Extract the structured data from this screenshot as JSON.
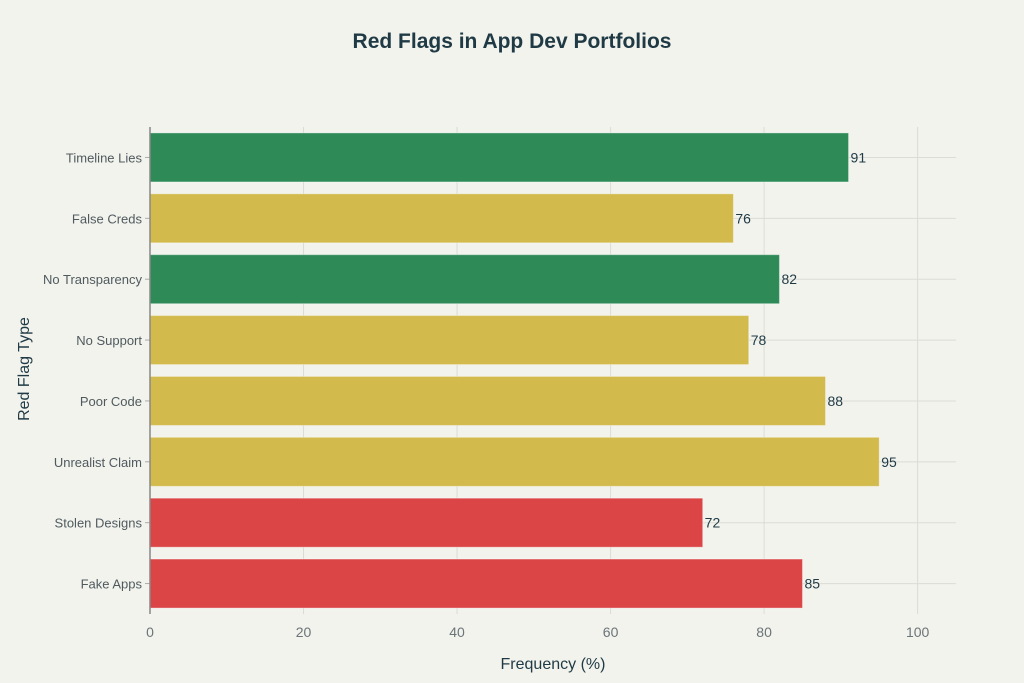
{
  "chart_data": {
    "type": "bar",
    "orientation": "horizontal",
    "title": "Red Flags in App Dev Portfolios",
    "xlabel": "Frequency (%)",
    "ylabel": "Red Flag Type",
    "xlim": [
      0,
      105
    ],
    "xticks": [
      0,
      20,
      40,
      60,
      80,
      100
    ],
    "grid": true,
    "categories": [
      "Timeline Lies",
      "False Creds",
      "No Transparency",
      "No Support",
      "Poor Code",
      "Unrealist Claim",
      "Stolen Designs",
      "Fake Apps"
    ],
    "values": [
      91,
      76,
      82,
      78,
      88,
      95,
      72,
      85
    ],
    "colors": [
      "#2e8b57",
      "#d2ba4c",
      "#2e8b57",
      "#d2ba4c",
      "#d2ba4c",
      "#d2ba4c",
      "#db4545",
      "#db4545"
    ]
  }
}
